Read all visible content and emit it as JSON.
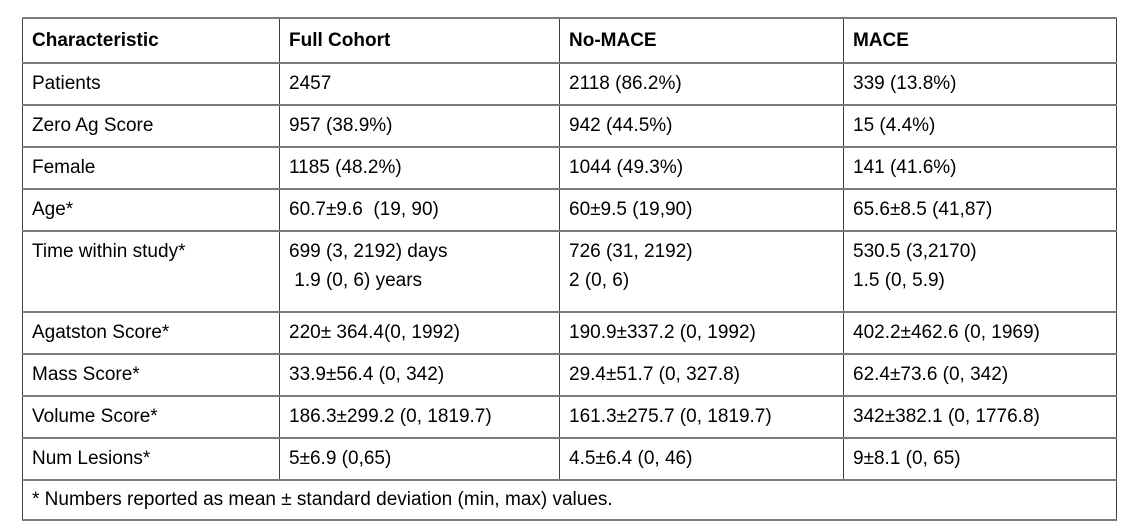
{
  "colors": {
    "background": "#ffffff",
    "text": "#000000",
    "border_horizontal": "#7a7a7a",
    "border_vertical": "#404040"
  },
  "table": {
    "headers": [
      "Characteristic",
      "Full Cohort",
      "No-MACE",
      "MACE"
    ],
    "rows": [
      {
        "label": "Patients",
        "cells": [
          "2457",
          "2118 (86.2%)",
          "339 (13.8%)"
        ]
      },
      {
        "label": "Zero Ag Score",
        "cells": [
          "957 (38.9%)",
          "942 (44.5%)",
          "15 (4.4%)"
        ]
      },
      {
        "label": "Female",
        "cells": [
          "1185 (48.2%)",
          "1044 (49.3%)",
          "141 (41.6%)"
        ]
      },
      {
        "label": "Age*",
        "cells": [
          "60.7±9.6  (19, 90)",
          "60±9.5 (19,90)",
          "65.6±8.5 (41,87)"
        ]
      },
      {
        "label": "Time within study*",
        "cells": [
          "699 (3, 2192) days\n 1.9 (0, 6) years",
          "726 (31, 2192)\n2 (0, 6)",
          "530.5 (3,2170)\n1.5 (0, 5.9)"
        ]
      },
      {
        "label": "Agatston Score*",
        "cells": [
          "220± 364.4(0, 1992)",
          "190.9±337.2 (0, 1992)",
          "402.2±462.6 (0, 1969)"
        ]
      },
      {
        "label": "Mass Score*",
        "cells": [
          "33.9±56.4 (0, 342)",
          "29.4±51.7 (0, 327.8)",
          "62.4±73.6 (0, 342)"
        ]
      },
      {
        "label": "Volume Score*",
        "cells": [
          "186.3±299.2 (0, 1819.7)",
          "161.3±275.7 (0, 1819.7)",
          "342±382.1 (0, 1776.8)"
        ]
      },
      {
        "label": "Num Lesions*",
        "cells": [
          "5±6.9 (0,65)",
          "4.5±6.4 (0, 46)",
          "9±8.1 (0, 65)"
        ]
      }
    ],
    "footnote": "* Numbers reported as mean ± standard deviation (min, max) values."
  }
}
